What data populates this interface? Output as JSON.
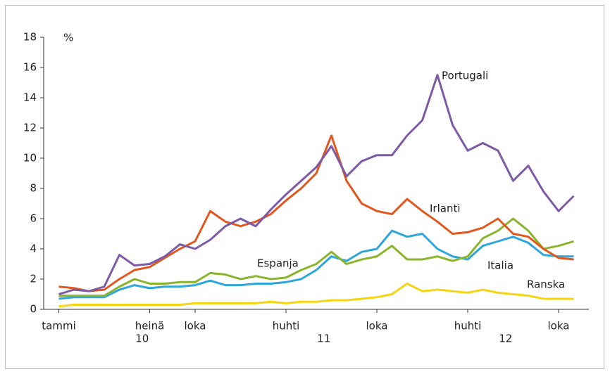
{
  "chart_data": {
    "type": "line",
    "unit_label": "%",
    "x": [
      0,
      1,
      2,
      3,
      4,
      5,
      6,
      7,
      8,
      9,
      10,
      11,
      12,
      13,
      14,
      15,
      16,
      17,
      18,
      19,
      20,
      21,
      22,
      23,
      24,
      25,
      26,
      27,
      28,
      29,
      30,
      31,
      32,
      33,
      34
    ],
    "xlim": [
      -1,
      35
    ],
    "xticks": [
      {
        "value": 0,
        "label": "tammi"
      },
      {
        "value": 6,
        "label": "heinä"
      },
      {
        "value": 9,
        "label": "loka"
      },
      {
        "value": 15,
        "label": "huhti"
      },
      {
        "value": 21,
        "label": "loka"
      },
      {
        "value": 27,
        "label": "huhti"
      },
      {
        "value": 33,
        "label": "loka"
      }
    ],
    "year_labels": [
      {
        "value": 5.5,
        "label": "10"
      },
      {
        "value": 17.5,
        "label": "11"
      },
      {
        "value": 29.5,
        "label": "12"
      }
    ],
    "ylim": [
      0,
      18
    ],
    "yticks": [
      0,
      2,
      4,
      6,
      8,
      10,
      12,
      14,
      16,
      18
    ],
    "grid": false,
    "series": [
      {
        "name": "Portugali",
        "color": "#7d5aa6",
        "values": [
          1.0,
          1.3,
          1.2,
          1.5,
          3.6,
          2.9,
          3.0,
          3.5,
          4.3,
          4.0,
          4.6,
          5.5,
          6.0,
          5.5,
          6.6,
          7.6,
          8.5,
          9.4,
          10.8,
          8.8,
          9.8,
          10.2,
          10.2,
          11.5,
          12.5,
          15.5,
          12.2,
          10.5,
          11.0,
          10.5,
          8.5,
          9.5,
          7.8,
          6.5,
          7.5
        ]
      },
      {
        "name": "Irlanti",
        "color": "#e2571e",
        "values": [
          1.5,
          1.4,
          1.2,
          1.3,
          2.0,
          2.6,
          2.8,
          3.4,
          4.0,
          4.5,
          6.5,
          5.8,
          5.5,
          5.8,
          6.3,
          7.2,
          8.0,
          9.0,
          11.5,
          8.5,
          7.0,
          6.5,
          6.3,
          7.3,
          6.5,
          5.8,
          5.0,
          5.1,
          5.4,
          6.0,
          5.0,
          4.8,
          4.0,
          3.4,
          3.3
        ]
      },
      {
        "name": "Espanja",
        "color": "#8ab52b",
        "values": [
          0.9,
          0.9,
          0.9,
          0.9,
          1.5,
          2.0,
          1.7,
          1.7,
          1.8,
          1.8,
          2.4,
          2.3,
          2.0,
          2.2,
          2.0,
          2.1,
          2.6,
          3.0,
          3.8,
          3.0,
          3.3,
          3.5,
          4.2,
          3.3,
          3.3,
          3.5,
          3.2,
          3.5,
          4.7,
          5.2,
          6.0,
          5.2,
          4.0,
          4.2,
          4.5
        ]
      },
      {
        "name": "Italia",
        "color": "#2ea6dc",
        "values": [
          0.7,
          0.8,
          0.8,
          0.8,
          1.3,
          1.6,
          1.4,
          1.5,
          1.5,
          1.6,
          1.9,
          1.6,
          1.6,
          1.7,
          1.7,
          1.8,
          2.0,
          2.6,
          3.5,
          3.2,
          3.8,
          4.0,
          5.2,
          4.8,
          5.0,
          4.0,
          3.5,
          3.3,
          4.2,
          4.5,
          4.8,
          4.4,
          3.6,
          3.5,
          3.5
        ]
      },
      {
        "name": "Ranska",
        "color": "#f5d510",
        "values": [
          0.2,
          0.3,
          0.3,
          0.3,
          0.3,
          0.3,
          0.3,
          0.3,
          0.3,
          0.4,
          0.4,
          0.4,
          0.4,
          0.4,
          0.5,
          0.4,
          0.5,
          0.5,
          0.6,
          0.6,
          0.7,
          0.8,
          1.0,
          1.7,
          1.2,
          1.3,
          1.2,
          1.1,
          1.3,
          1.1,
          1.0,
          0.9,
          0.7,
          0.7,
          0.7
        ]
      }
    ]
  }
}
